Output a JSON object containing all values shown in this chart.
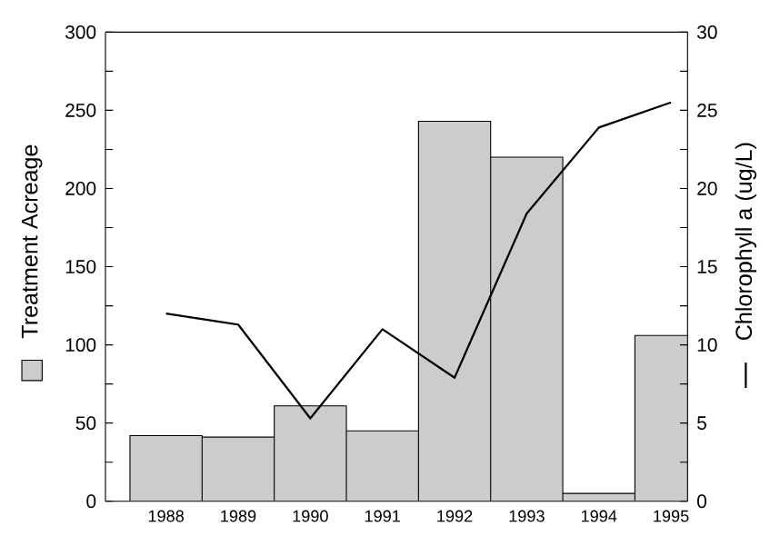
{
  "chart_data": {
    "type": "bar",
    "ylabel": "Treatment Acreage",
    "y2label": "Chlorophyll a (ug/L)",
    "categories": [
      "1988",
      "1989",
      "1990",
      "1991",
      "1992",
      "1993",
      "1994",
      "1995"
    ],
    "series": [
      {
        "color": "#cccccc",
        "values": [
          42,
          41,
          61,
          45,
          243,
          220,
          5,
          106
        ]
      },
      {
        "type": "line",
        "axis": "y2",
        "color": "#000000",
        "values": [
          12.0,
          11.3,
          5.3,
          11.0,
          7.9,
          18.4,
          23.9,
          25.5
        ]
      }
    ],
    "ylim": [
      0,
      300
    ],
    "yticks": [
      0,
      {
        "value": 25,
        "label": null
      },
      50,
      {
        "value": 75,
        "label": null
      },
      100,
      {
        "value": 125,
        "label": null
      },
      150,
      {
        "value": 175,
        "label": null
      },
      200,
      {
        "value": 225,
        "label": null
      },
      250,
      {
        "value": 275,
        "label": null
      },
      300
    ],
    "y2lim": [
      0,
      30
    ],
    "y2ticks": [
      0,
      {
        "value": 2.5,
        "label": null
      },
      5,
      {
        "value": 7.5,
        "label": null
      },
      10,
      {
        "value": 12.5,
        "label": null
      },
      15,
      {
        "value": 17.5,
        "label": null
      },
      20,
      {
        "value": 22.5,
        "label": null
      },
      25,
      {
        "value": 27.5,
        "label": null
      },
      30
    ],
    "grid": false
  }
}
